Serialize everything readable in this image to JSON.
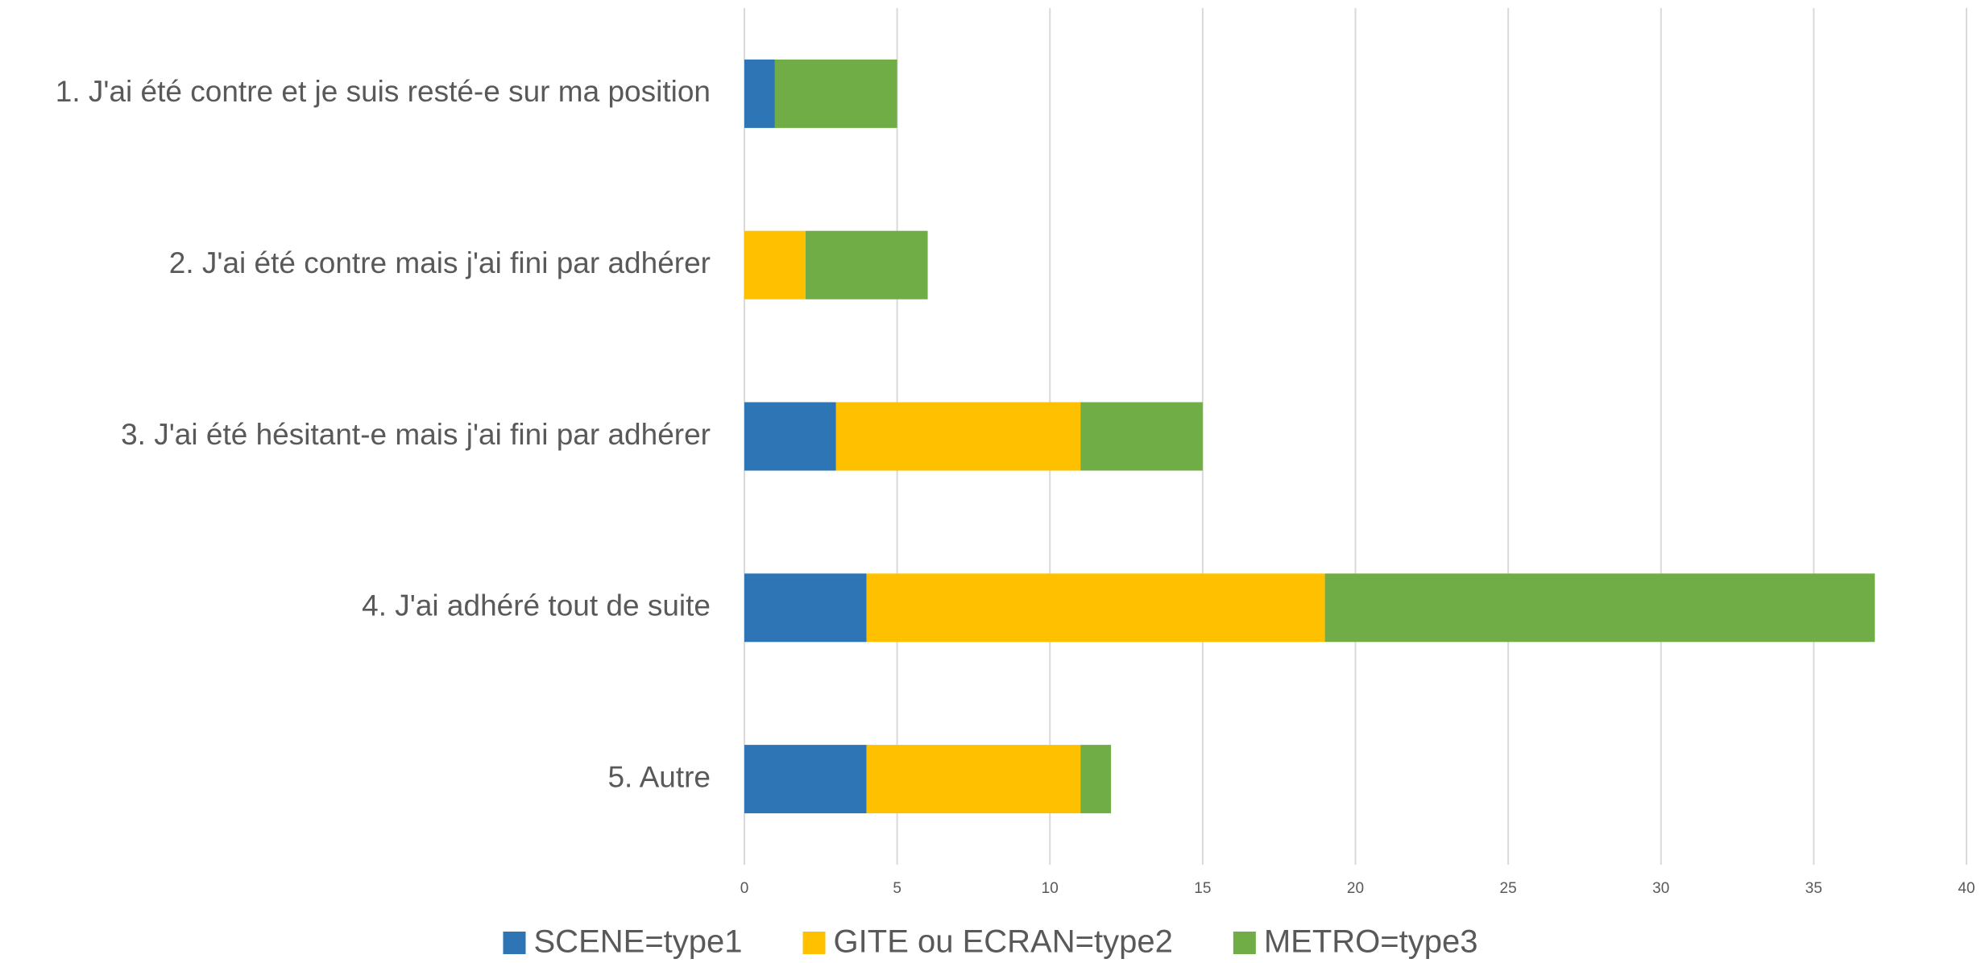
{
  "chart_data": {
    "type": "stacked_barh",
    "categories": [
      "1. J'ai été contre et je suis resté-e sur ma position",
      "2. J'ai été contre mais j'ai fini par adhérer",
      "3. J'ai été hésitant-e mais j'ai fini par adhérer",
      "4. J'ai adhéré tout de suite",
      "5. Autre"
    ],
    "series": [
      {
        "name": "SCENE=type1",
        "color": "#2e75b6",
        "values": [
          1,
          0,
          3,
          4,
          4
        ]
      },
      {
        "name": "GITE ou ECRAN=type2",
        "color": "#ffc000",
        "values": [
          0,
          2,
          8,
          15,
          7
        ]
      },
      {
        "name": "METRO=type3",
        "color": "#70ad47",
        "values": [
          4,
          4,
          4,
          18,
          1
        ]
      }
    ],
    "xlim": [
      0,
      40
    ],
    "xticks": [
      0,
      5,
      10,
      15,
      20,
      25,
      30,
      35,
      40
    ],
    "grid": true,
    "legend": "bottom"
  }
}
